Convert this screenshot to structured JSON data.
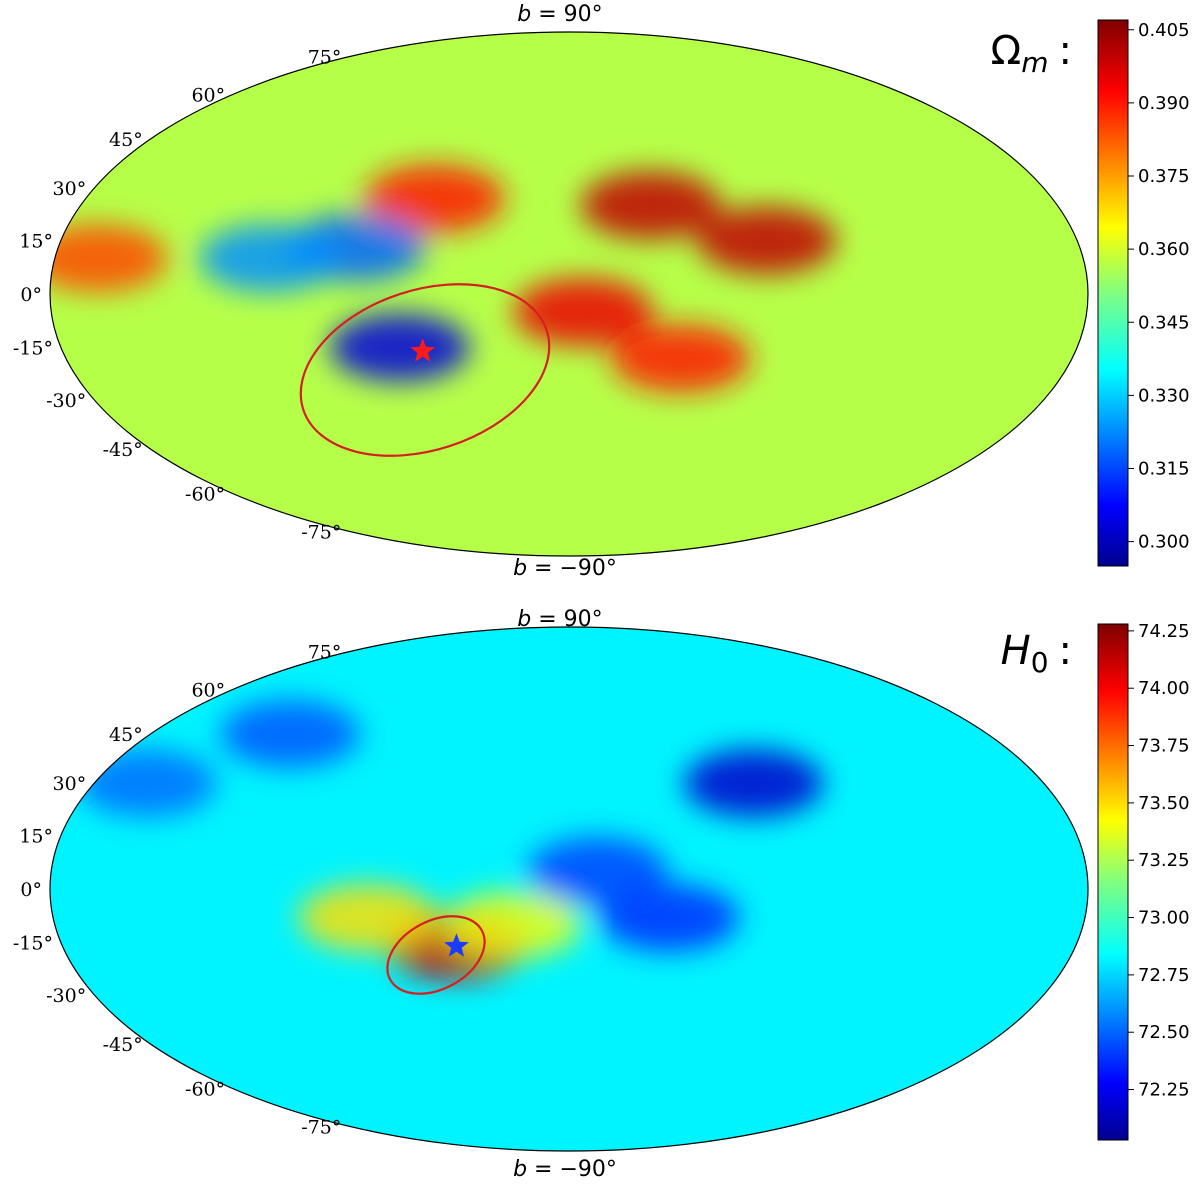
{
  "chart_data": [
    {
      "type": "heatmap",
      "projection": "mollweide",
      "parameter_label": "Ω_m :",
      "parameter_symbol": "Ω",
      "parameter_subscript": "m",
      "parameter_suffix": ":",
      "pole_north": "b = 90°",
      "pole_south": "b = −90°",
      "pole_north_var": "b",
      "pole_north_rest": " = 90°",
      "pole_south_var": "b",
      "pole_south_rest": " = −90°",
      "latitude_labels": [
        "75°",
        "60°",
        "45°",
        "30°",
        "15°",
        "0°",
        "-15°",
        "-30°",
        "-45°",
        "-60°",
        "-75°"
      ],
      "colorbar": {
        "colormap": "jet",
        "range": [
          0.295,
          0.407
        ],
        "ticks": [
          0.405,
          0.39,
          0.375,
          0.36,
          0.345,
          0.33,
          0.315,
          0.3
        ],
        "tick_labels": [
          "0.405",
          "0.390",
          "0.375",
          "0.360",
          "0.345",
          "0.330",
          "0.315",
          "0.300"
        ]
      },
      "background_value": 0.357,
      "features": [
        {
          "kind": "high",
          "lon": -30,
          "lat": 25,
          "value": 0.4
        },
        {
          "kind": "high",
          "lon": -70,
          "lat": 15,
          "value": 0.4
        },
        {
          "kind": "high",
          "lon": -5,
          "lat": -5,
          "value": 0.395
        },
        {
          "kind": "high",
          "lon": -40,
          "lat": -18,
          "value": 0.39
        },
        {
          "kind": "high",
          "lon": 165,
          "lat": 10,
          "value": 0.385
        },
        {
          "kind": "high",
          "lon": 50,
          "lat": 27,
          "value": 0.39
        },
        {
          "kind": "low",
          "lon": 60,
          "lat": -15,
          "value": 0.305
        },
        {
          "kind": "low",
          "lon": 75,
          "lat": 13,
          "value": 0.32
        },
        {
          "kind": "low",
          "lon": 105,
          "lat": 10,
          "value": 0.325
        }
      ],
      "marker": {
        "symbol": "star",
        "color": "#ff1a1a",
        "lon": 52,
        "lat": -16
      },
      "confidence_ellipse": {
        "color": "#d42020"
      }
    },
    {
      "type": "heatmap",
      "projection": "mollweide",
      "parameter_label": "H_0 :",
      "parameter_symbol": "H",
      "parameter_subscript": "0",
      "parameter_suffix": ":",
      "pole_north": "b = 90°",
      "pole_south": "b = −90°",
      "pole_north_var": "b",
      "pole_north_rest": " = 90°",
      "pole_south_var": "b",
      "pole_south_rest": " = −90°",
      "latitude_labels": [
        "75°",
        "60°",
        "45°",
        "30°",
        "15°",
        "0°",
        "-15°",
        "-30°",
        "-45°",
        "-60°",
        "-75°"
      ],
      "colorbar": {
        "colormap": "jet",
        "range": [
          72.03,
          74.28
        ],
        "ticks": [
          74.25,
          74.0,
          73.75,
          73.5,
          73.25,
          73.0,
          72.75,
          72.5,
          72.25
        ],
        "tick_labels": [
          "74.25",
          "74.00",
          "73.75",
          "73.50",
          "73.25",
          "73.00",
          "72.75",
          "72.50",
          "72.25"
        ]
      },
      "background_value": 72.85,
      "features": [
        {
          "kind": "high",
          "lon": 40,
          "lat": -16,
          "value": 74.1
        },
        {
          "kind": "high",
          "lon": 70,
          "lat": -8,
          "value": 73.5
        },
        {
          "kind": "high",
          "lon": 20,
          "lat": -10,
          "value": 73.4
        },
        {
          "kind": "low",
          "lon": -70,
          "lat": 30,
          "value": 72.2
        },
        {
          "kind": "low",
          "lon": -35,
          "lat": -8,
          "value": 72.4
        },
        {
          "kind": "low",
          "lon": 120,
          "lat": 45,
          "value": 72.5
        },
        {
          "kind": "low",
          "lon": -10,
          "lat": 5,
          "value": 72.45
        },
        {
          "kind": "low",
          "lon": 160,
          "lat": 30,
          "value": 72.55
        }
      ],
      "marker": {
        "symbol": "star",
        "color": "#1a3cff",
        "lon": 40,
        "lat": -16
      },
      "confidence_ellipse": {
        "color": "#d42020"
      }
    }
  ]
}
